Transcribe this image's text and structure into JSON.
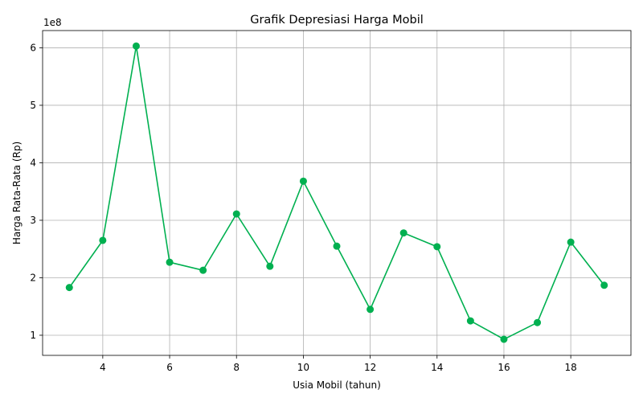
{
  "chart_data": {
    "type": "line",
    "title": "Grafik Depresiasi Harga Mobil",
    "xlabel": "Usia Mobil (tahun)",
    "ylabel": "Harga Rata-Rata (Rp)",
    "y_offset_label": "1e8",
    "grid": true,
    "color": "#00b050",
    "xlim": [
      2.2,
      19.8
    ],
    "ylim": [
      65000000,
      630000000
    ],
    "x_ticks": [
      4,
      6,
      8,
      10,
      12,
      14,
      16,
      18
    ],
    "y_ticks": [
      1,
      2,
      3,
      4,
      5,
      6
    ],
    "y_tick_multiplier": 100000000,
    "series": [
      {
        "x": [
          3,
          4,
          5,
          6,
          7,
          8,
          9,
          10,
          11,
          12,
          13,
          14,
          15,
          16,
          17,
          18,
          19
        ],
        "values": [
          183000000,
          265000000,
          603000000,
          227000000,
          213000000,
          311000000,
          220000000,
          368000000,
          255000000,
          145000000,
          278000000,
          254000000,
          125000000,
          93000000,
          122000000,
          262000000,
          187000000
        ]
      }
    ]
  }
}
